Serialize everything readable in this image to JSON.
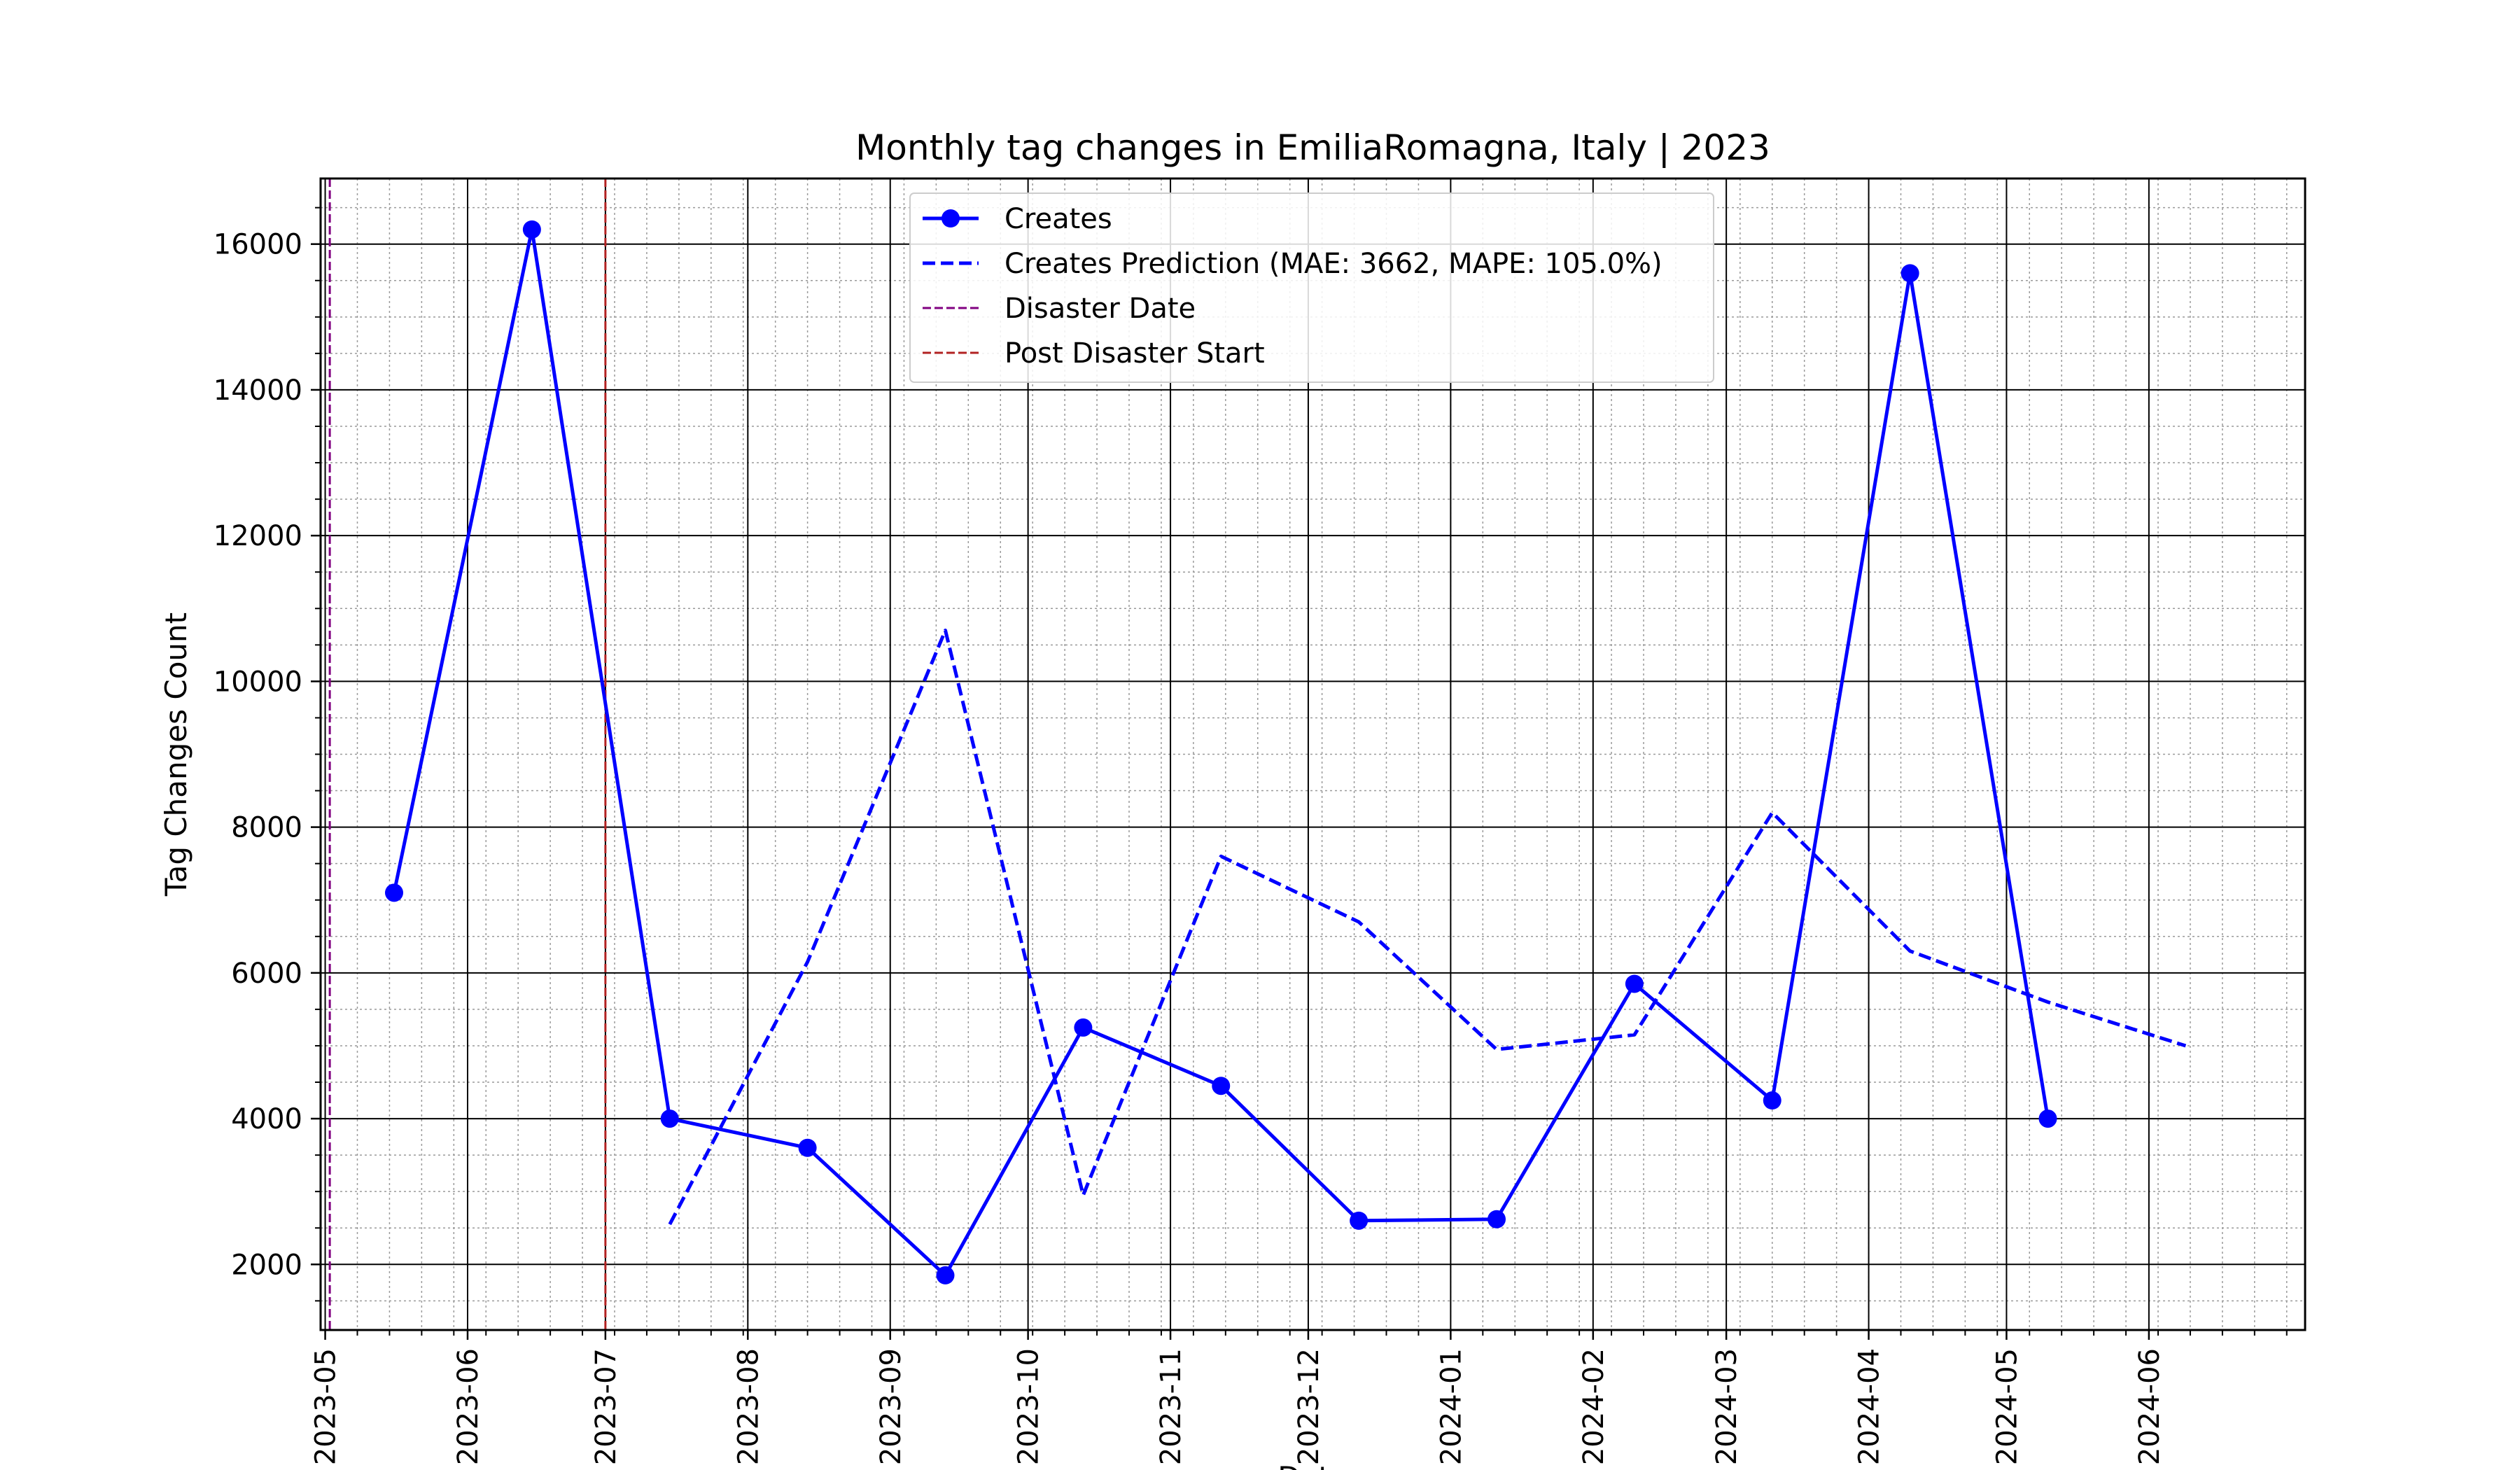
{
  "chart_data": {
    "type": "line",
    "title": "Monthly tag changes in EmiliaRomagna, Italy | 2023",
    "xlabel": "Date",
    "ylabel": "Tag Changes Count",
    "x_axis": {
      "type": "date",
      "range": [
        "2023-04-30",
        "2024-07-05"
      ],
      "tick_labels": [
        "2023-05",
        "2023-06",
        "2023-07",
        "2023-08",
        "2023-09",
        "2023-10",
        "2023-11",
        "2023-12",
        "2024-01",
        "2024-02",
        "2024-03",
        "2024-04",
        "2024-05",
        "2024-06"
      ],
      "tick_dates": [
        "2023-05-01",
        "2023-06-01",
        "2023-07-01",
        "2023-08-01",
        "2023-09-01",
        "2023-10-01",
        "2023-11-01",
        "2023-12-01",
        "2024-01-01",
        "2024-02-01",
        "2024-03-01",
        "2024-04-01",
        "2024-05-01",
        "2024-06-01"
      ]
    },
    "y_axis": {
      "range": [
        1100,
        16900
      ],
      "ticks": [
        2000,
        4000,
        6000,
        8000,
        10000,
        12000,
        14000,
        16000
      ]
    },
    "grid": {
      "major": true,
      "minor": true
    },
    "legend_position": "top-center",
    "series": [
      {
        "name": "Creates",
        "style": "solid",
        "marker": "circle",
        "color": "#0000ff",
        "points": [
          {
            "x": "2023-05-16",
            "y": 7100
          },
          {
            "x": "2023-06-15",
            "y": 16200
          },
          {
            "x": "2023-07-15",
            "y": 4000
          },
          {
            "x": "2023-08-14",
            "y": 3600
          },
          {
            "x": "2023-09-13",
            "y": 1850
          },
          {
            "x": "2023-10-13",
            "y": 5250
          },
          {
            "x": "2023-11-12",
            "y": 4450
          },
          {
            "x": "2023-12-12",
            "y": 2600
          },
          {
            "x": "2024-01-11",
            "y": 2620
          },
          {
            "x": "2024-02-10",
            "y": 5850
          },
          {
            "x": "2024-03-11",
            "y": 4250
          },
          {
            "x": "2024-04-10",
            "y": 15600
          },
          {
            "x": "2024-05-10",
            "y": 4000
          }
        ]
      },
      {
        "name": "Creates Prediction (MAE: 3662, MAPE: 105.0%)",
        "style": "dashed",
        "marker": "none",
        "color": "#0000ff",
        "points": [
          {
            "x": "2023-07-15",
            "y": 2550
          },
          {
            "x": "2023-08-14",
            "y": 6150
          },
          {
            "x": "2023-09-13",
            "y": 10700
          },
          {
            "x": "2023-10-13",
            "y": 2950
          },
          {
            "x": "2023-11-12",
            "y": 7600
          },
          {
            "x": "2023-12-12",
            "y": 6700
          },
          {
            "x": "2024-01-11",
            "y": 4950
          },
          {
            "x": "2024-02-10",
            "y": 5150
          },
          {
            "x": "2024-03-11",
            "y": 8200
          },
          {
            "x": "2024-04-10",
            "y": 6300
          },
          {
            "x": "2024-05-10",
            "y": 5600
          },
          {
            "x": "2024-06-09",
            "y": 5000
          }
        ]
      }
    ],
    "vertical_lines": [
      {
        "name": "Disaster Date",
        "x": "2023-05-02",
        "style": "dashed",
        "color": "#800080"
      },
      {
        "name": "Post Disaster Start",
        "x": "2023-07-01",
        "style": "dashed",
        "color": "#b22222"
      }
    ]
  }
}
